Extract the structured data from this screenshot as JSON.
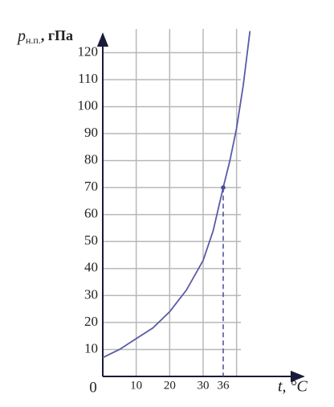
{
  "chart_data": {
    "type": "line",
    "y_label_symbol": "p",
    "y_label_subscript": "н.п.",
    "y_label_unit": ", гПа",
    "x_label": "t, °C",
    "x": [
      0,
      5,
      10,
      15,
      20,
      25,
      30,
      33,
      36,
      38,
      40,
      42,
      44
    ],
    "series": [
      {
        "color": "#5a5aa8",
        "values": [
          7,
          10,
          14,
          18,
          24,
          32,
          43,
          54,
          70,
          80,
          92,
          108,
          128
        ]
      }
    ],
    "xlim": [
      0,
      60
    ],
    "ylim": [
      0,
      127
    ],
    "xticks": [
      0,
      10,
      20,
      30,
      36
    ],
    "xgrid": [
      10,
      20,
      30,
      40
    ],
    "yticks": [
      10,
      20,
      30,
      40,
      50,
      60,
      70,
      80,
      90,
      100,
      110,
      120
    ],
    "grid": true,
    "highlight": {
      "x": 36,
      "y": 70
    }
  }
}
